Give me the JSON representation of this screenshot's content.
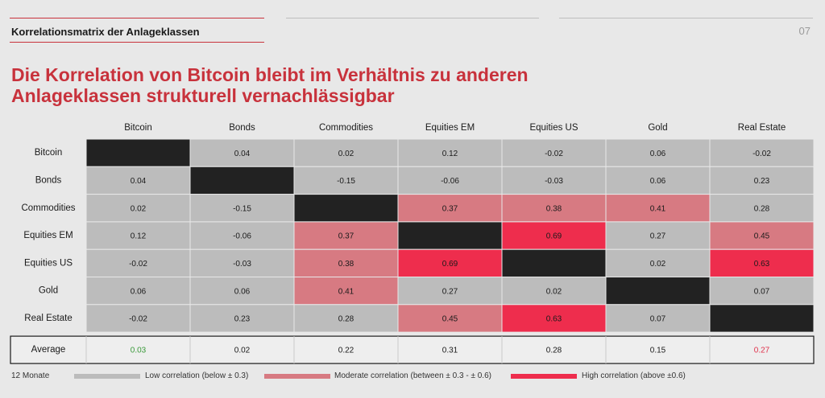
{
  "header": {
    "section_title": "Korrelationsmatrix der Anlageklassen",
    "page_number": "07"
  },
  "headline": {
    "line1": "Die Korrelation von Bitcoin bleibt im Verhältnis zu anderen",
    "line2": "Anlageklassen strukturell vernachlässigbar"
  },
  "colors": {
    "accent": "#c8323c",
    "diagonal": "#222222",
    "low": "#bcbcbc",
    "moderate": "#d77a82",
    "high": "#ee2d4d",
    "average_low_text": "#3a9a3a",
    "average_high_text": "#e0324c"
  },
  "chart_data": {
    "type": "heatmap",
    "columns": [
      "Bitcoin",
      "Bonds",
      "Commodities",
      "Equities EM",
      "Equities US",
      "Gold",
      "Real Estate"
    ],
    "rows": [
      "Bitcoin",
      "Bonds",
      "Commodities",
      "Equities EM",
      "Equities US",
      "Gold",
      "Real Estate"
    ],
    "values": [
      [
        null,
        "0.04",
        "0.02",
        "0.12",
        "-0.02",
        "0.06",
        "-0.02"
      ],
      [
        "0.04",
        null,
        "-0.15",
        "-0.06",
        "-0.03",
        "0.06",
        "0.23"
      ],
      [
        "0.02",
        "-0.15",
        null,
        "0.37",
        "0.38",
        "0.41",
        "0.28"
      ],
      [
        "0.12",
        "-0.06",
        "0.37",
        null,
        "0.69",
        "0.27",
        "0.45"
      ],
      [
        "-0.02",
        "-0.03",
        "0.38",
        "0.69",
        null,
        "0.02",
        "0.63"
      ],
      [
        "0.06",
        "0.06",
        "0.41",
        "0.27",
        "0.02",
        null,
        "0.07"
      ],
      [
        "-0.02",
        "0.23",
        "0.28",
        "0.45",
        "0.63",
        "0.07",
        null
      ]
    ],
    "average_label": "Average",
    "average": [
      "0.03",
      "0.02",
      "0.22",
      "0.31",
      "0.28",
      "0.15",
      "0.27"
    ],
    "legend": {
      "period": "12 Monate",
      "low": "Low correlation (below ± 0.3)",
      "moderate": "Moderate correlation (between ± 0.3 - ± 0.6)",
      "high": "High correlation (above ±0.6)"
    }
  }
}
